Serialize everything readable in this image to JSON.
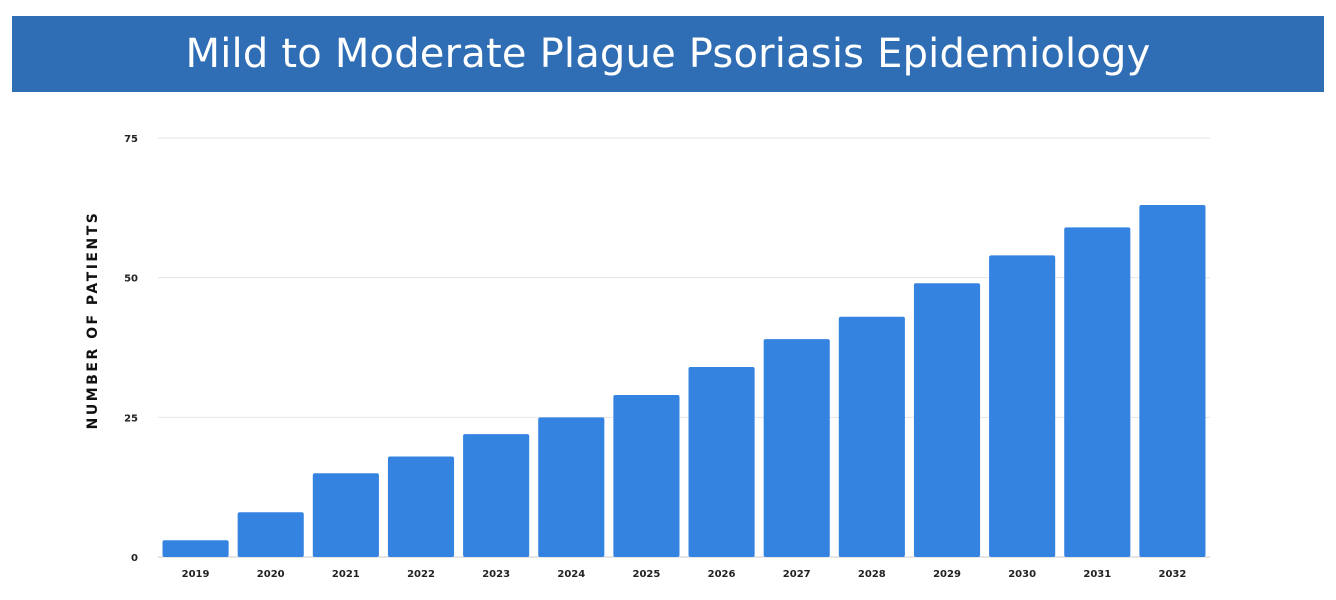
{
  "header": {
    "title": "Mild to Moderate Plague Psoriasis Epidemiology"
  },
  "colors": {
    "banner": "#2f6db5",
    "bar": "#3583e0",
    "grid": "#e6e6e6",
    "axis": "#cccccc"
  },
  "chart_data": {
    "type": "bar",
    "title": "Mild to Moderate Plague Psoriasis Epidemiology",
    "xlabel": "",
    "ylabel": "NUMBER OF PATIENTS",
    "ylim": [
      0,
      75
    ],
    "yticks": [
      0,
      25,
      50,
      75
    ],
    "grid": true,
    "categories": [
      "2019",
      "2020",
      "2021",
      "2022",
      "2023",
      "2024",
      "2025",
      "2026",
      "2027",
      "2028",
      "2029",
      "2030",
      "2031",
      "2032"
    ],
    "values": [
      3,
      8,
      15,
      18,
      22,
      25,
      29,
      34,
      39,
      43,
      49,
      54,
      59,
      63
    ]
  }
}
